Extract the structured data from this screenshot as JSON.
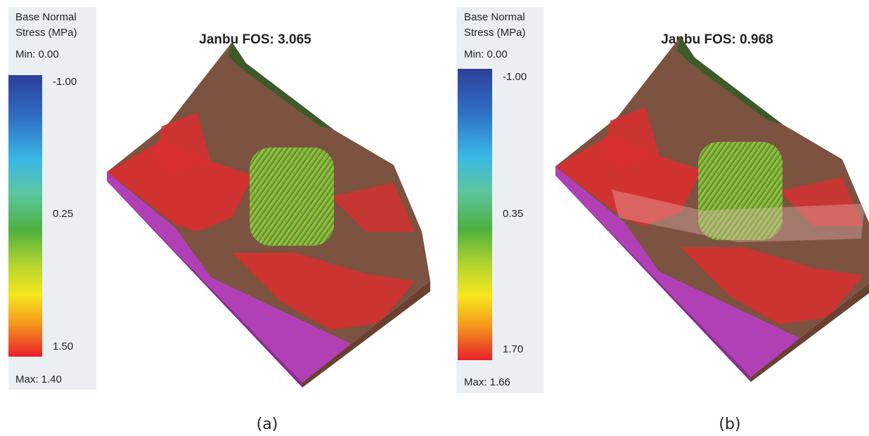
{
  "panels": [
    {
      "legend": {
        "title_lines": [
          "Base Normal",
          "Stress (MPa)"
        ],
        "min_label": "Min: 0.00",
        "ticks": [
          "-1.00",
          "0.25",
          "1.50"
        ],
        "max_label": "Max: 1.40"
      },
      "heading": "Janbu FOS: 3.065",
      "caption": "(a)"
    },
    {
      "legend": {
        "title_lines": [
          "Base Normal",
          "Stress (MPa)"
        ],
        "min_label": "Min: 0.00",
        "ticks": [
          "-1.00",
          "0.35",
          "1.70"
        ],
        "max_label": "Max: 1.66"
      },
      "heading": "Janbu FOS: 0.968",
      "caption": "(b)"
    }
  ]
}
